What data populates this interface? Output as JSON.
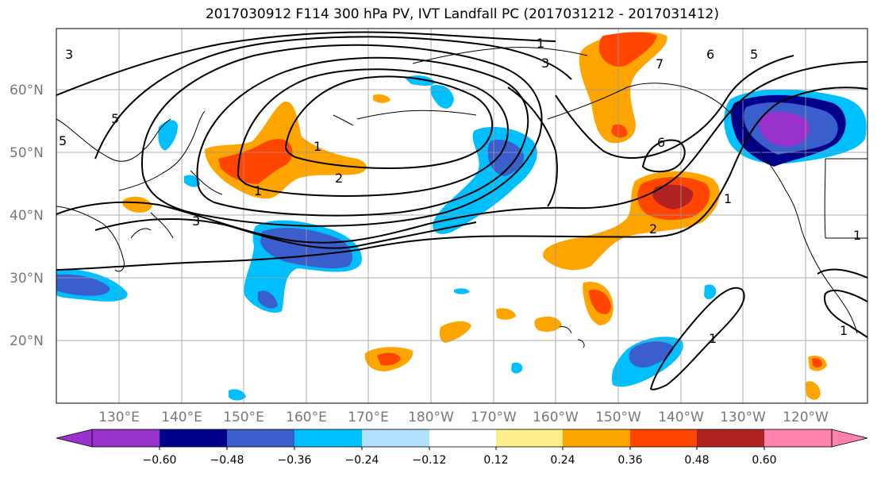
{
  "title": "2017030912 F114 300 hPa PV, IVT Landfall PC (2017031212 - 2017031412)",
  "lat_labels": [
    "60°N",
    "50°N",
    "40°N",
    "30°N",
    "20°N"
  ],
  "lon_labels": [
    "130°E",
    "140°E",
    "150°E",
    "160°E",
    "170°E",
    "180°W",
    "170°W",
    "160°W",
    "150°W",
    "140°W",
    "130°W",
    "120°W"
  ],
  "colorbar": {
    "ticks": [
      "−0.60",
      "−0.48",
      "−0.36",
      "−0.24",
      "−0.12",
      "0.12",
      "0.24",
      "0.36",
      "0.48",
      "0.60"
    ],
    "colors": [
      "#9932CC",
      "#00008B",
      "#3A5FCD",
      "#00BFFF",
      "#B0E2FF",
      "#FFFFFF",
      "#FFEC8B",
      "#FFA500",
      "#FF4500",
      "#B22222",
      "#FF82AB"
    ]
  },
  "contour_labels": [
    "3",
    "5",
    "5",
    "3",
    "1",
    "2",
    "1",
    "3",
    "1",
    "7",
    "6",
    "5",
    "6",
    "1",
    "2",
    "1",
    "1",
    "1"
  ],
  "fill_colors": {
    "purple": "#9932CC",
    "navy": "#00008B",
    "blue": "#3A5FCD",
    "cyan": "#00BFFF",
    "orange": "#FFA500",
    "red": "#FF4500",
    "darkred": "#B22222",
    "yellow": "#FFEC8B"
  }
}
